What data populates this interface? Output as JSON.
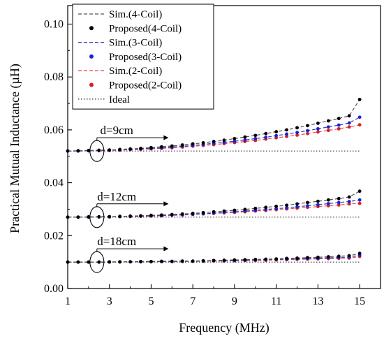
{
  "chart_data": {
    "type": "line",
    "title": "",
    "xlabel": "Frequency (MHz)",
    "ylabel": "Practical Mutual Inductance (µH)",
    "xlim": [
      1,
      16
    ],
    "ylim": [
      0.0,
      0.107
    ],
    "x_ticks": [
      1,
      3,
      5,
      7,
      9,
      11,
      13,
      15
    ],
    "x_tick_labels": [
      "1",
      "3",
      "5",
      "7",
      "9",
      "11",
      "13",
      "15"
    ],
    "y_ticks": [
      0.0,
      0.02,
      0.04,
      0.06,
      0.08,
      0.1
    ],
    "y_tick_labels": [
      "0.00",
      "0.02",
      "0.04",
      "0.06",
      "0.08",
      "0.10"
    ],
    "grid": false,
    "legend_position": "top-left",
    "legend": [
      {
        "label": "Sim.(4-Coil)",
        "kind": "dashed",
        "color": "#555555"
      },
      {
        "label": "Proposed(4-Coil)",
        "kind": "dot",
        "color": "#000000"
      },
      {
        "label": "Sim.(3-Coil)",
        "kind": "dashed",
        "color": "#3b3bb0"
      },
      {
        "label": "Proposed(3-Coil)",
        "kind": "dot",
        "color": "#1f1fd6"
      },
      {
        "label": "Sim.(2-Coil)",
        "kind": "dashed",
        "color": "#e05050"
      },
      {
        "label": "Proposed(2-Coil)",
        "kind": "dot",
        "color": "#d62020"
      },
      {
        "label": "Ideal",
        "kind": "dotted",
        "color": "#333333"
      }
    ],
    "x": [
      1,
      1.5,
      2,
      2.5,
      3,
      3.5,
      4,
      4.5,
      5,
      5.5,
      6,
      6.5,
      7,
      7.5,
      8,
      8.5,
      9,
      9.5,
      10,
      10.5,
      11,
      11.5,
      12,
      12.5,
      13,
      13.5,
      14,
      14.5,
      15
    ],
    "groups": [
      {
        "name": "d=9cm",
        "ideal": 0.052,
        "series": [
          {
            "coil": "4-Coil",
            "values": [
              0.052,
              0.0521,
              0.0522,
              0.0523,
              0.0524,
              0.0526,
              0.0528,
              0.053,
              0.0533,
              0.0536,
              0.0539,
              0.0543,
              0.0547,
              0.0551,
              0.0556,
              0.0561,
              0.0567,
              0.0573,
              0.0579,
              0.0586,
              0.0593,
              0.06,
              0.0608,
              0.0616,
              0.0625,
              0.0634,
              0.0643,
              0.0653,
              0.0715
            ]
          },
          {
            "coil": "3-Coil",
            "values": [
              0.052,
              0.052,
              0.0521,
              0.0522,
              0.0523,
              0.0524,
              0.0526,
              0.0528,
              0.053,
              0.0532,
              0.0535,
              0.0538,
              0.0541,
              0.0545,
              0.0549,
              0.0553,
              0.0557,
              0.0562,
              0.0567,
              0.0572,
              0.0578,
              0.0584,
              0.059,
              0.0597,
              0.0604,
              0.0611,
              0.0618,
              0.0626,
              0.0648
            ]
          },
          {
            "coil": "2-Coil",
            "values": [
              0.052,
              0.052,
              0.0521,
              0.0521,
              0.0522,
              0.0523,
              0.0525,
              0.0526,
              0.0528,
              0.053,
              0.0532,
              0.0535,
              0.0538,
              0.0541,
              0.0544,
              0.0548,
              0.0552,
              0.0556,
              0.056,
              0.0565,
              0.057,
              0.0575,
              0.058,
              0.0586,
              0.0592,
              0.0598,
              0.0604,
              0.0611,
              0.0619
            ]
          }
        ]
      },
      {
        "name": "d=12cm",
        "ideal": 0.027,
        "series": [
          {
            "coil": "4-Coil",
            "values": [
              0.027,
              0.027,
              0.0271,
              0.0271,
              0.0272,
              0.0273,
              0.0274,
              0.0275,
              0.0277,
              0.0278,
              0.028,
              0.0282,
              0.0284,
              0.0287,
              0.029,
              0.0293,
              0.0296,
              0.0299,
              0.0303,
              0.0307,
              0.0311,
              0.0315,
              0.032,
              0.0325,
              0.033,
              0.0335,
              0.034,
              0.0346,
              0.0368
            ]
          },
          {
            "coil": "3-Coil",
            "values": [
              0.027,
              0.027,
              0.027,
              0.0271,
              0.0271,
              0.0272,
              0.0273,
              0.0274,
              0.0275,
              0.0276,
              0.0278,
              0.0279,
              0.0281,
              0.0283,
              0.0285,
              0.0288,
              0.029,
              0.0293,
              0.0296,
              0.0299,
              0.0302,
              0.0305,
              0.0309,
              0.0313,
              0.0317,
              0.0321,
              0.0325,
              0.0329,
              0.0335
            ]
          },
          {
            "coil": "2-Coil",
            "values": [
              0.027,
              0.027,
              0.027,
              0.0271,
              0.0271,
              0.0272,
              0.0272,
              0.0273,
              0.0274,
              0.0275,
              0.0277,
              0.0278,
              0.028,
              0.0282,
              0.0284,
              0.0286,
              0.0288,
              0.029,
              0.0293,
              0.0295,
              0.0298,
              0.0301,
              0.0304,
              0.0307,
              0.031,
              0.0313,
              0.0316,
              0.032,
              0.0322
            ]
          }
        ]
      },
      {
        "name": "d=18cm",
        "ideal": 0.01,
        "series": [
          {
            "coil": "4-Coil",
            "values": [
              0.01,
              0.01,
              0.01,
              0.01,
              0.0101,
              0.0101,
              0.0101,
              0.0102,
              0.0102,
              0.0103,
              0.0103,
              0.0104,
              0.0104,
              0.0105,
              0.0106,
              0.0107,
              0.0108,
              0.0109,
              0.011,
              0.0111,
              0.0112,
              0.0114,
              0.0115,
              0.0117,
              0.0118,
              0.012,
              0.0122,
              0.0124,
              0.0133
            ]
          },
          {
            "coil": "3-Coil",
            "values": [
              0.01,
              0.01,
              0.01,
              0.01,
              0.01,
              0.0101,
              0.0101,
              0.0101,
              0.0102,
              0.0102,
              0.0102,
              0.0103,
              0.0103,
              0.0104,
              0.0105,
              0.0105,
              0.0106,
              0.0107,
              0.0108,
              0.0109,
              0.011,
              0.0111,
              0.0112,
              0.0113,
              0.0114,
              0.0116,
              0.0117,
              0.0119,
              0.0126
            ]
          },
          {
            "coil": "2-Coil",
            "values": [
              0.01,
              0.01,
              0.01,
              0.01,
              0.01,
              0.01,
              0.0101,
              0.0101,
              0.0101,
              0.0102,
              0.0102,
              0.0102,
              0.0103,
              0.0103,
              0.0104,
              0.0104,
              0.0105,
              0.0106,
              0.0106,
              0.0107,
              0.0108,
              0.0109,
              0.011,
              0.0111,
              0.0112,
              0.0113,
              0.0114,
              0.0115,
              0.0121
            ]
          }
        ]
      }
    ],
    "series_styles": {
      "4-Coil": {
        "sim_color": "#555555",
        "dot_color": "#000000"
      },
      "3-Coil": {
        "sim_color": "#3b3bb0",
        "dot_color": "#1f1fd6"
      },
      "2-Coil": {
        "sim_color": "#e05050",
        "dot_color": "#d62020"
      }
    },
    "ideal_color": "#333333",
    "annotations": [
      {
        "text": "d=9cm",
        "group": 0
      },
      {
        "text": "d=12cm",
        "group": 1
      },
      {
        "text": "d=18cm",
        "group": 2
      }
    ]
  }
}
